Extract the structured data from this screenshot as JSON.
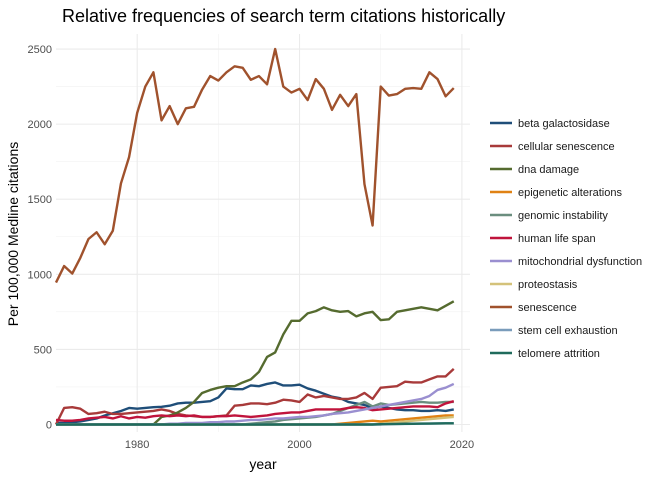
{
  "chart_data": {
    "type": "line",
    "title": "Relative frequencies of search term citations historically",
    "xlabel": "year",
    "ylabel": "Per 100,000 Medline citations",
    "xlim": [
      1970,
      2021
    ],
    "ylim": [
      -50,
      2600
    ],
    "xticks": [
      1980,
      2000,
      2020
    ],
    "yticks": [
      0,
      500,
      1000,
      1500,
      2000,
      2500
    ],
    "grid": true,
    "legend_position": "right",
    "x": [
      1970,
      1971,
      1972,
      1973,
      1974,
      1975,
      1976,
      1977,
      1978,
      1979,
      1980,
      1981,
      1982,
      1983,
      1984,
      1985,
      1986,
      1987,
      1988,
      1989,
      1990,
      1991,
      1992,
      1993,
      1994,
      1995,
      1996,
      1997,
      1998,
      1999,
      2000,
      2001,
      2002,
      2003,
      2004,
      2005,
      2006,
      2007,
      2008,
      2009,
      2010,
      2011,
      2012,
      2013,
      2014,
      2015,
      2016,
      2017,
      2018,
      2019
    ],
    "series": [
      {
        "name": "beta galactosidase",
        "color": "#1f4e79",
        "values": [
          10,
          10,
          15,
          20,
          30,
          40,
          60,
          75,
          90,
          110,
          105,
          110,
          115,
          118,
          125,
          140,
          145,
          145,
          150,
          155,
          180,
          240,
          235,
          235,
          260,
          255,
          270,
          280,
          260,
          260,
          265,
          240,
          225,
          205,
          185,
          175,
          150,
          140,
          130,
          110,
          120,
          110,
          100,
          95,
          95,
          90,
          90,
          95,
          90,
          100
        ]
      },
      {
        "name": "cellular senescence",
        "color": "#a83a3a",
        "values": [
          0,
          110,
          115,
          105,
          70,
          75,
          85,
          70,
          70,
          75,
          80,
          85,
          90,
          100,
          90,
          70,
          60,
          55,
          50,
          50,
          55,
          60,
          125,
          130,
          140,
          140,
          135,
          145,
          165,
          160,
          150,
          200,
          180,
          190,
          180,
          170,
          170,
          180,
          210,
          170,
          245,
          250,
          255,
          285,
          280,
          280,
          300,
          320,
          320,
          370
        ]
      },
      {
        "name": "dna damage",
        "color": "#556b2f",
        "values": [
          0,
          0,
          0,
          0,
          0,
          0,
          0,
          0,
          0,
          0,
          0,
          0,
          0,
          50,
          60,
          80,
          110,
          150,
          210,
          230,
          245,
          255,
          255,
          280,
          300,
          350,
          450,
          480,
          600,
          690,
          690,
          740,
          755,
          780,
          760,
          750,
          755,
          720,
          740,
          750,
          695,
          700,
          750,
          760,
          770,
          780,
          770,
          760,
          790,
          820
        ]
      },
      {
        "name": "epigenetic alterations",
        "color": "#e08214",
        "values": [
          0,
          0,
          0,
          0,
          0,
          0,
          0,
          0,
          0,
          0,
          0,
          0,
          0,
          0,
          0,
          0,
          0,
          0,
          0,
          0,
          0,
          0,
          0,
          0,
          0,
          0,
          0,
          0,
          0,
          0,
          0,
          0,
          0,
          0,
          0,
          5,
          10,
          15,
          20,
          25,
          20,
          25,
          30,
          35,
          40,
          45,
          50,
          55,
          60,
          60
        ]
      },
      {
        "name": "genomic instability",
        "color": "#6b8e7f",
        "values": [
          0,
          0,
          0,
          0,
          0,
          0,
          0,
          0,
          0,
          0,
          0,
          0,
          0,
          0,
          0,
          0,
          0,
          0,
          0,
          0,
          0,
          0,
          0,
          0,
          5,
          10,
          15,
          20,
          30,
          35,
          40,
          45,
          50,
          60,
          70,
          90,
          110,
          130,
          150,
          120,
          140,
          130,
          135,
          140,
          145,
          150,
          145,
          145,
          150,
          150
        ]
      },
      {
        "name": "human life span",
        "color": "#c0143c",
        "values": [
          30,
          25,
          25,
          30,
          40,
          45,
          50,
          40,
          55,
          40,
          50,
          45,
          55,
          60,
          55,
          60,
          55,
          60,
          50,
          50,
          55,
          55,
          60,
          55,
          50,
          55,
          60,
          70,
          75,
          80,
          80,
          90,
          100,
          100,
          100,
          100,
          110,
          115,
          110,
          95,
          100,
          105,
          110,
          115,
          120,
          120,
          120,
          115,
          140,
          155
        ]
      },
      {
        "name": "mitochondrial dysfunction",
        "color": "#9a8fd0",
        "values": [
          0,
          0,
          0,
          0,
          0,
          0,
          0,
          0,
          0,
          0,
          0,
          0,
          0,
          0,
          5,
          5,
          10,
          10,
          10,
          15,
          15,
          20,
          20,
          25,
          30,
          30,
          35,
          40,
          40,
          45,
          50,
          50,
          55,
          60,
          70,
          75,
          80,
          90,
          100,
          110,
          120,
          130,
          140,
          150,
          160,
          170,
          190,
          230,
          245,
          270
        ]
      },
      {
        "name": "proteostasis",
        "color": "#d4c27a",
        "values": [
          0,
          0,
          0,
          0,
          0,
          0,
          0,
          0,
          0,
          0,
          0,
          0,
          0,
          0,
          0,
          0,
          0,
          0,
          0,
          0,
          0,
          0,
          0,
          0,
          0,
          0,
          0,
          0,
          0,
          0,
          0,
          0,
          0,
          0,
          0,
          0,
          0,
          0,
          0,
          0,
          5,
          10,
          15,
          20,
          25,
          30,
          35,
          40,
          45,
          50
        ]
      },
      {
        "name": "senescence",
        "color": "#a0522d",
        "values": [
          945,
          1055,
          1005,
          1110,
          1235,
          1280,
          1200,
          1290,
          1605,
          1780,
          2075,
          2250,
          2345,
          2025,
          2120,
          2000,
          2105,
          2115,
          2230,
          2320,
          2290,
          2345,
          2385,
          2375,
          2295,
          2320,
          2265,
          2500,
          2250,
          2210,
          2235,
          2160,
          2300,
          2235,
          2095,
          2195,
          2120,
          2200,
          1600,
          1325,
          2250,
          2190,
          2200,
          2235,
          2240,
          2235,
          2345,
          2300,
          2185,
          2240
        ]
      },
      {
        "name": "stem cell exhaustion",
        "color": "#7a9cbb",
        "values": [
          0,
          0,
          0,
          0,
          0,
          0,
          0,
          0,
          0,
          0,
          0,
          0,
          0,
          0,
          0,
          0,
          0,
          0,
          0,
          0,
          0,
          0,
          0,
          0,
          0,
          0,
          0,
          0,
          0,
          0,
          0,
          0,
          0,
          0,
          0,
          0,
          0,
          0,
          0,
          0,
          0,
          2,
          3,
          4,
          5,
          5,
          6,
          7,
          8,
          8
        ]
      },
      {
        "name": "telomere attrition",
        "color": "#1f6b5c",
        "values": [
          0,
          0,
          0,
          0,
          0,
          0,
          0,
          0,
          0,
          0,
          0,
          0,
          0,
          0,
          0,
          0,
          0,
          0,
          0,
          0,
          0,
          0,
          0,
          0,
          0,
          0,
          0,
          0,
          0,
          0,
          0,
          0,
          0,
          0,
          0,
          0,
          0,
          0,
          0,
          0,
          2,
          3,
          4,
          5,
          5,
          6,
          6,
          7,
          8,
          8
        ]
      }
    ]
  }
}
